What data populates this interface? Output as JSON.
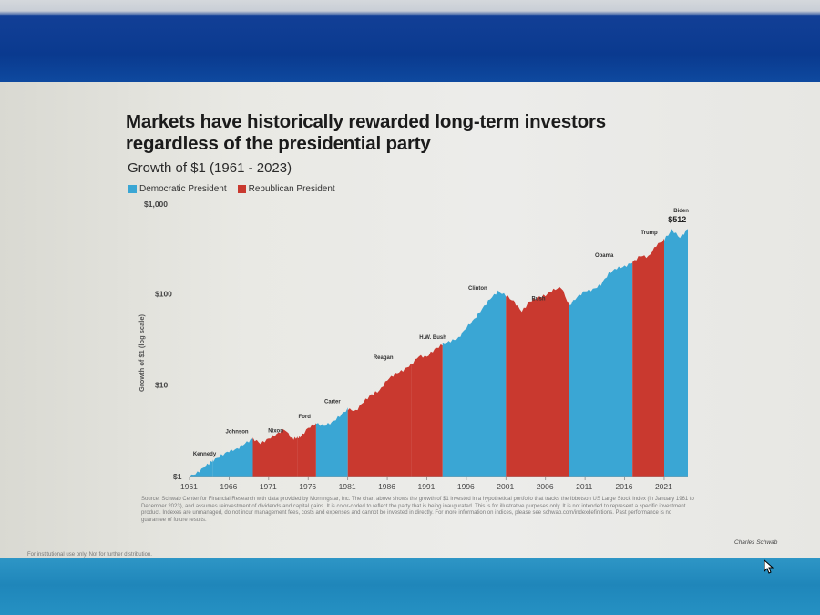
{
  "title": "Markets have historically rewarded long-term investors regardless of the presidential party",
  "subtitle": "Growth of $1 (1961 - 2023)",
  "legend": {
    "democratic": "Democratic President",
    "republican": "Republican President"
  },
  "colors": {
    "democratic": "#3aa6d4",
    "republican": "#c9392f"
  },
  "source_text": "Source: Schwab Center for Financial Research with data provided by Morningstar, Inc. The chart above shows the growth of $1 invested in a hypothetical portfolio that tracks the Ibbotson US Large Stock Index (in January 1961 to December 2023), and assumes reinvestment of dividends and capital gains. It is color-coded to reflect the party that is being inaugurated. This is for illustrative purposes only. It is not intended to represent a specific investment product. Indexes are unmanaged, do not incur management fees, costs and expenses and cannot be invested in directly. For more information on indices, please see schwab.com/indexdefinitions. Past performance is no guarantee of future results.",
  "footer_left": "For institutional use only. Not for further distribution.",
  "brand": "Charles Schwab",
  "chart_data": {
    "type": "area",
    "ylabel": "Growth of $1 (log scale)",
    "yscale": "log",
    "ylim": [
      1,
      1000
    ],
    "yticks": [
      {
        "value": 1,
        "label": "$1"
      },
      {
        "value": 10,
        "label": "$10"
      },
      {
        "value": 100,
        "label": "$100"
      },
      {
        "value": 1000,
        "label": "$1,000"
      }
    ],
    "xlim": [
      1961,
      2024
    ],
    "xticks": [
      1961,
      1966,
      1971,
      1976,
      1981,
      1986,
      1991,
      1996,
      2001,
      2006,
      2011,
      2016,
      2021
    ],
    "end_label": "$512",
    "series": [
      {
        "x": [
          1961,
          1962,
          1963,
          1964,
          1965,
          1966,
          1967,
          1968,
          1969,
          1970,
          1971,
          1972,
          1973,
          1974,
          1975,
          1976,
          1977,
          1978,
          1979,
          1980,
          1981,
          1982,
          1983,
          1984,
          1985,
          1986,
          1987,
          1988,
          1989,
          1990,
          1991,
          1992,
          1993,
          1994,
          1995,
          1996,
          1997,
          1998,
          1999,
          2000,
          2001,
          2002,
          2003,
          2004,
          2005,
          2006,
          2007,
          2008,
          2009,
          2010,
          2011,
          2012,
          2013,
          2014,
          2015,
          2016,
          2017,
          2018,
          2019,
          2020,
          2021,
          2022,
          2023,
          2024
        ],
        "y": [
          1.0,
          1.1,
          1.3,
          1.5,
          1.7,
          1.9,
          2.0,
          2.3,
          2.6,
          2.3,
          2.6,
          2.9,
          3.3,
          2.6,
          2.7,
          3.4,
          3.8,
          3.6,
          3.9,
          4.6,
          5.5,
          5.2,
          6.6,
          7.9,
          8.7,
          11.4,
          13.3,
          14.5,
          16.8,
          20.8,
          20.5,
          24.7,
          27.8,
          30.3,
          32.5,
          42.7,
          52.6,
          68.5,
          88.0,
          106.0,
          96.0,
          82.0,
          64.0,
          82.0,
          91.0,
          96.0,
          110.0,
          118.0,
          74.0,
          92.0,
          107.0,
          111.0,
          126.0,
          166.0,
          190.0,
          198.0,
          220.0,
          260.0,
          252.0,
          337.0,
          389.0,
          500.0,
          410.0,
          512.0
        ]
      }
    ],
    "presidents": [
      {
        "name": "Kennedy",
        "party": "D",
        "start": 1961,
        "end": 1963.9
      },
      {
        "name": "Johnson",
        "party": "D",
        "start": 1963.9,
        "end": 1969
      },
      {
        "name": "Nixon",
        "party": "R",
        "start": 1969,
        "end": 1974.6
      },
      {
        "name": "Ford",
        "party": "R",
        "start": 1974.6,
        "end": 1977
      },
      {
        "name": "Carter",
        "party": "D",
        "start": 1977,
        "end": 1981
      },
      {
        "name": "Reagan",
        "party": "R",
        "start": 1981,
        "end": 1989
      },
      {
        "name": "H.W. Bush",
        "party": "R",
        "start": 1989,
        "end": 1993
      },
      {
        "name": "Clinton",
        "party": "D",
        "start": 1993,
        "end": 2001
      },
      {
        "name": "Bush",
        "party": "R",
        "start": 2001,
        "end": 2009
      },
      {
        "name": "Obama",
        "party": "D",
        "start": 2009,
        "end": 2017
      },
      {
        "name": "Trump",
        "party": "R",
        "start": 2017,
        "end": 2021
      },
      {
        "name": "Biden",
        "party": "D",
        "start": 2021,
        "end": 2024
      }
    ]
  }
}
